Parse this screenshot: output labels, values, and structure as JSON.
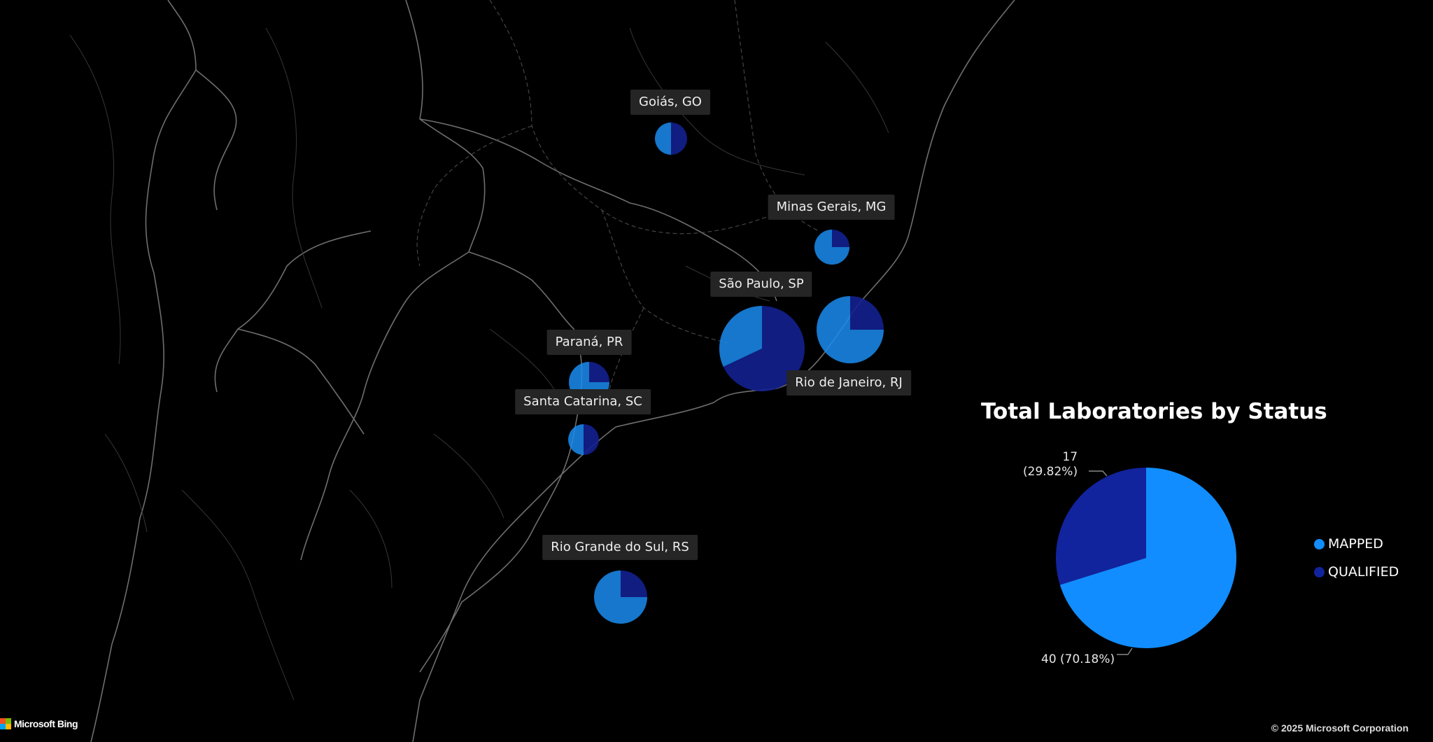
{
  "map": {
    "states": [
      {
        "label": "Goiás, GO",
        "mapped": 0.5,
        "qualified": 0.5
      },
      {
        "label": "Minas Gerais, MG",
        "mapped": 0.75,
        "qualified": 0.25
      },
      {
        "label": "São Paulo, SP",
        "mapped": 0.32,
        "qualified": 0.68
      },
      {
        "label": "Rio de Janeiro, RJ",
        "mapped": 0.75,
        "qualified": 0.25
      },
      {
        "label": "Paraná, PR",
        "mapped": 0.75,
        "qualified": 0.25
      },
      {
        "label": "Santa Catarina, SC",
        "mapped": 0.5,
        "qualified": 0.5
      },
      {
        "label": "Rio Grande do Sul, RS",
        "mapped": 0.75,
        "qualified": 0.25
      }
    ],
    "attribution_logo": "Microsoft Bing",
    "copyright": "© 2025 Microsoft Corporation"
  },
  "chart_data": {
    "type": "pie",
    "title": "Total Laboratories by Status",
    "slices": [
      {
        "name": "MAPPED",
        "value": 40,
        "percent": "70.18%",
        "label": "40 (70.18%)",
        "color": "#118DFF"
      },
      {
        "name": "QUALIFIED",
        "value": 17,
        "percent": "29.82%",
        "label": "17\n(29.82%)",
        "color": "#12239E"
      }
    ],
    "legend": [
      "MAPPED",
      "QUALIFIED"
    ],
    "legend_position": "right"
  },
  "colors": {
    "mapped": "#1a8cf0",
    "qualified": "#13208f",
    "background": "#000000",
    "borders": "#5a5a5a"
  }
}
